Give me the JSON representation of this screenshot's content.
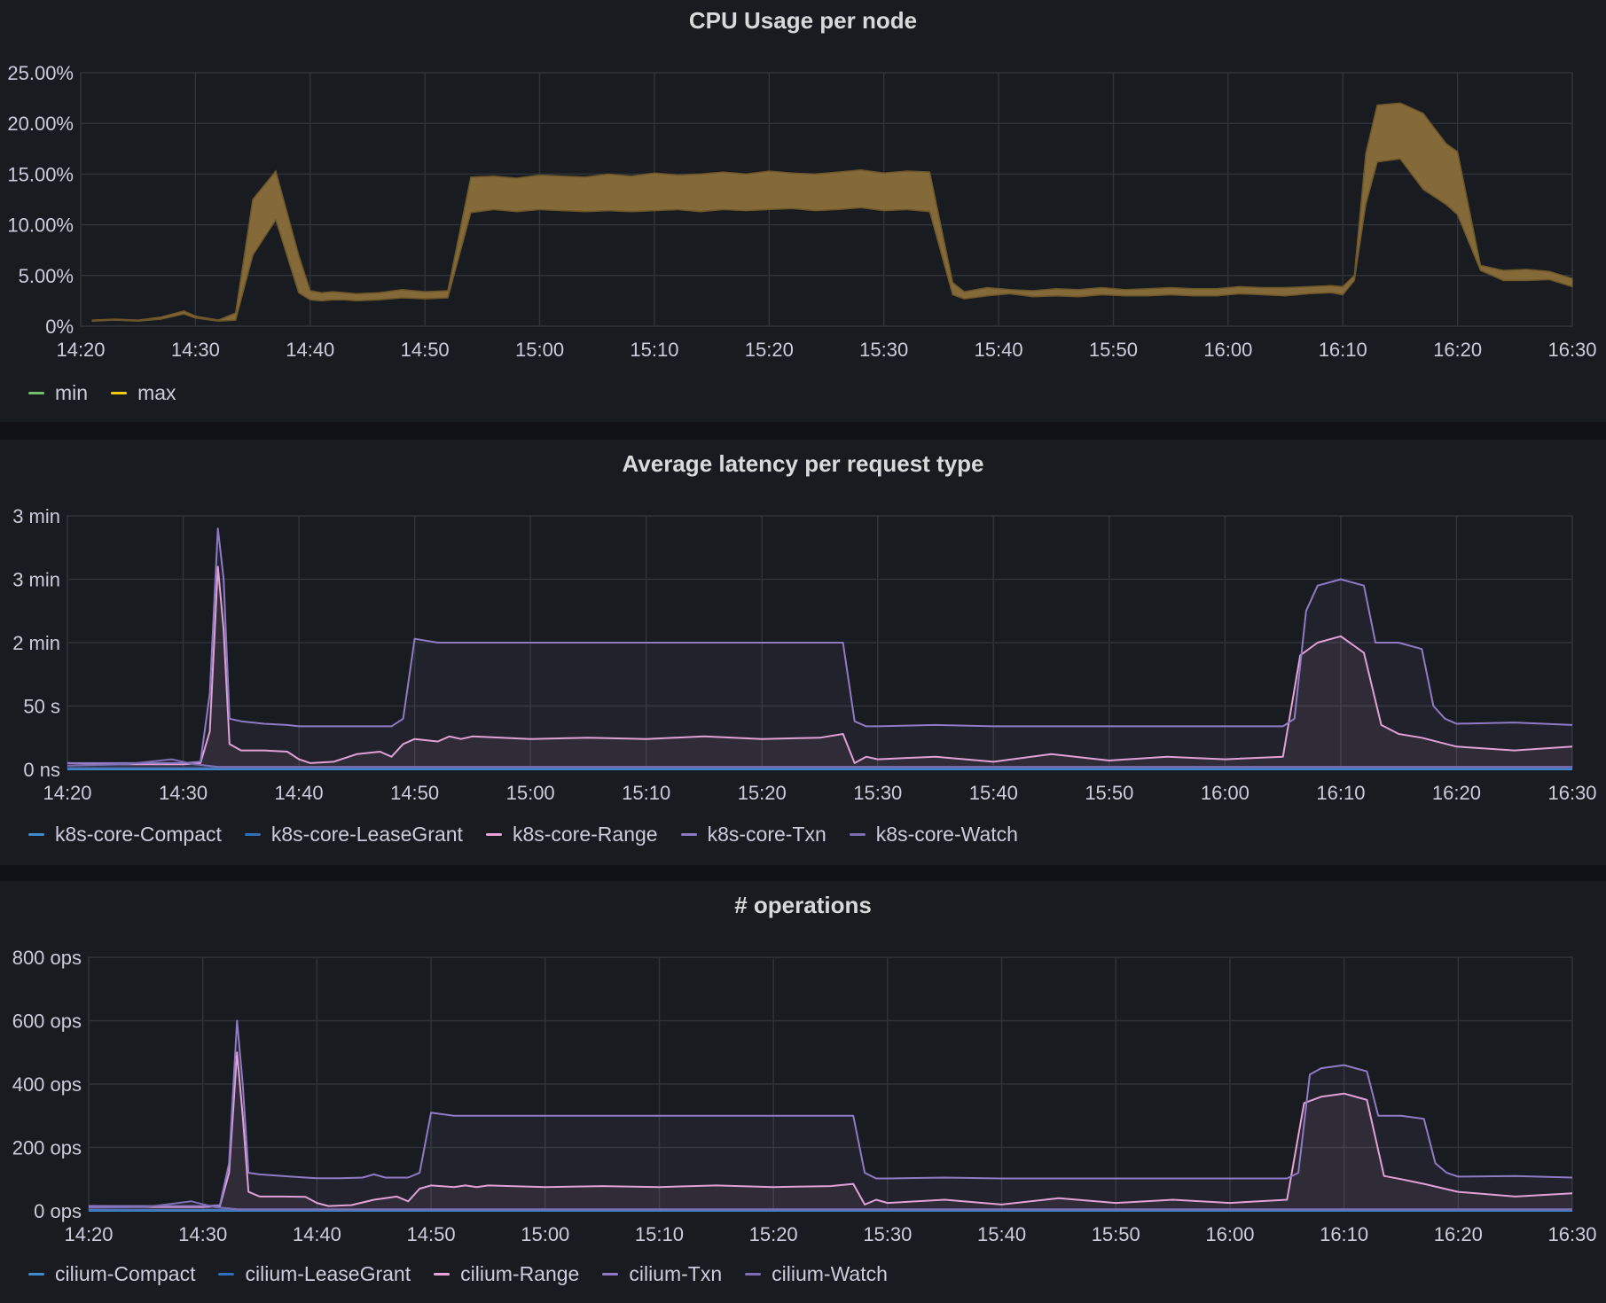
{
  "time_ticks": [
    "14:20",
    "14:30",
    "14:40",
    "14:50",
    "15:00",
    "15:10",
    "15:20",
    "15:30",
    "15:40",
    "15:50",
    "16:00",
    "16:10",
    "16:20",
    "16:30"
  ],
  "chart_data": [
    {
      "type": "area",
      "title": "CPU Usage per node",
      "y_ticks": [
        "0%",
        "5.00%",
        "10.00%",
        "15.00%",
        "20.00%",
        "25.00%"
      ],
      "ylim": [
        0,
        25
      ],
      "xlim_minutes": [
        0,
        130
      ],
      "grid": true,
      "legend_position": "bottom-left",
      "series": [
        {
          "name": "min",
          "color": "#73bf69",
          "x": [
            1,
            3,
            5,
            7,
            9,
            10,
            12,
            13.5,
            15,
            17,
            19,
            20,
            21,
            22,
            23,
            24,
            26,
            28,
            30,
            32,
            34,
            36,
            38,
            40,
            42,
            44,
            46,
            48,
            50,
            52,
            54,
            56,
            58,
            60,
            62,
            64,
            66,
            68,
            70,
            72,
            74,
            76,
            77,
            79,
            81,
            83,
            85,
            87,
            89,
            91,
            93,
            95,
            97,
            99,
            101,
            103,
            105,
            107,
            109,
            110,
            111,
            112,
            113,
            115,
            117,
            119,
            120,
            122,
            124,
            126,
            128,
            130
          ],
          "values": [
            0.5,
            0.6,
            0.5,
            0.7,
            1.2,
            0.8,
            0.5,
            0.6,
            7,
            10.5,
            3.3,
            2.6,
            2.5,
            2.6,
            2.6,
            2.5,
            2.6,
            2.8,
            2.7,
            2.8,
            11.2,
            11.5,
            11.3,
            11.5,
            11.4,
            11.3,
            11.4,
            11.3,
            11.4,
            11.5,
            11.3,
            11.5,
            11.4,
            11.5,
            11.6,
            11.4,
            11.5,
            11.7,
            11.4,
            11.5,
            11.3,
            3.1,
            2.7,
            3.0,
            3.2,
            2.9,
            3.0,
            2.9,
            3.1,
            3.0,
            3.0,
            3.1,
            3.0,
            3.0,
            3.2,
            3.1,
            3.0,
            3.2,
            3.3,
            3.1,
            4.5,
            12,
            16.2,
            16.5,
            13.5,
            12,
            11,
            5.5,
            4.5,
            4.5,
            4.6,
            3.9
          ]
        },
        {
          "name": "max",
          "color": "#f2cc0c",
          "x": [
            1,
            3,
            5,
            7,
            9,
            10,
            12,
            13.5,
            15,
            17,
            19,
            20,
            21,
            22,
            23,
            24,
            26,
            28,
            30,
            32,
            34,
            36,
            38,
            40,
            42,
            44,
            46,
            48,
            50,
            52,
            54,
            56,
            58,
            60,
            62,
            64,
            66,
            68,
            70,
            72,
            74,
            76,
            77,
            79,
            81,
            83,
            85,
            87,
            89,
            91,
            93,
            95,
            97,
            99,
            101,
            103,
            105,
            107,
            109,
            110,
            111,
            112,
            113,
            115,
            117,
            119,
            120,
            122,
            124,
            126,
            128,
            130
          ],
          "values": [
            0.6,
            0.7,
            0.6,
            0.9,
            1.5,
            1.0,
            0.6,
            1.3,
            12.5,
            15.3,
            7,
            3.5,
            3.3,
            3.4,
            3.3,
            3.2,
            3.3,
            3.6,
            3.4,
            3.5,
            14.7,
            14.8,
            14.6,
            14.9,
            14.8,
            14.7,
            15.0,
            14.8,
            15.1,
            14.9,
            15.0,
            15.2,
            15.0,
            15.3,
            15.1,
            15.0,
            15.2,
            15.4,
            15.1,
            15.3,
            15.2,
            4.3,
            3.4,
            3.8,
            3.6,
            3.5,
            3.7,
            3.6,
            3.8,
            3.6,
            3.7,
            3.8,
            3.7,
            3.7,
            3.9,
            3.8,
            3.8,
            3.9,
            4.0,
            3.9,
            5.0,
            17,
            21.8,
            22.0,
            21,
            18,
            17.2,
            6,
            5.5,
            5.6,
            5.4,
            4.7
          ]
        }
      ]
    },
    {
      "type": "line",
      "title": "Average latency per request type",
      "y_ticks": [
        "0 ns",
        "50 s",
        "2 min",
        "3 min",
        "3 min"
      ],
      "ylim": [
        0,
        200
      ],
      "xlim_minutes": [
        0,
        130
      ],
      "grid": true,
      "legend_position": "bottom-left",
      "series": [
        {
          "name": "k8s-core-Compact",
          "color": "#3d8ccf",
          "x": [
            0,
            130
          ],
          "values": [
            0,
            0
          ]
        },
        {
          "name": "k8s-core-LeaseGrant",
          "color": "#2f6fb8",
          "x": [
            0,
            130
          ],
          "values": [
            1,
            1
          ]
        },
        {
          "name": "k8s-core-Range",
          "color": "#e8a4d8",
          "x": [
            0,
            5,
            10,
            11.5,
            12.3,
            13,
            13.5,
            14,
            15,
            17,
            19,
            20,
            21,
            23,
            25,
            27,
            28,
            29,
            30,
            32,
            33,
            34,
            35,
            40,
            45,
            50,
            55,
            60,
            65,
            67,
            68,
            69,
            70,
            75,
            80,
            85,
            90,
            95,
            100,
            105,
            106.5,
            108,
            110,
            112,
            113.5,
            115,
            117,
            120,
            125,
            130
          ],
          "values": [
            5,
            4,
            4,
            5,
            30,
            160,
            110,
            20,
            15,
            15,
            14,
            8,
            5,
            6,
            12,
            14,
            10,
            20,
            24,
            22,
            26,
            24,
            26,
            24,
            25,
            24,
            26,
            24,
            25,
            28,
            5,
            10,
            8,
            10,
            6,
            12,
            7,
            10,
            8,
            10,
            90,
            100,
            105,
            92,
            35,
            28,
            25,
            18,
            15,
            18
          ]
        },
        {
          "name": "k8s-core-Txn",
          "color": "#8f7bc5",
          "x": [
            0,
            5,
            10,
            11.5,
            12.3,
            13,
            13.5,
            14,
            15,
            17,
            19,
            20,
            22,
            24,
            25,
            26,
            27,
            28,
            29,
            30,
            32,
            34,
            36,
            40,
            45,
            50,
            55,
            60,
            65,
            67,
            68,
            69,
            70,
            75,
            80,
            85,
            90,
            95,
            100,
            104,
            105,
            106,
            107,
            108,
            110,
            112,
            113,
            114,
            115,
            117,
            118,
            119,
            120,
            125,
            130
          ],
          "values": [
            5,
            5,
            5,
            6,
            60,
            190,
            150,
            40,
            38,
            36,
            35,
            34,
            34,
            34,
            34,
            34,
            34,
            34,
            40,
            103,
            100,
            100,
            100,
            100,
            100,
            100,
            100,
            100,
            100,
            100,
            38,
            34,
            34,
            35,
            34,
            34,
            34,
            34,
            34,
            34,
            34,
            40,
            125,
            145,
            150,
            145,
            100,
            100,
            100,
            95,
            50,
            40,
            36,
            37,
            35
          ]
        },
        {
          "name": "k8s-core-Watch",
          "color": "#7e6fb4",
          "x": [
            0,
            5,
            9,
            11,
            13,
            130
          ],
          "values": [
            3,
            4,
            8,
            4,
            2,
            2
          ]
        }
      ]
    },
    {
      "type": "line",
      "title": "# operations",
      "y_ticks": [
        "0 ops",
        "200 ops",
        "400 ops",
        "600 ops",
        "800 ops"
      ],
      "ylim": [
        0,
        800
      ],
      "xlim_minutes": [
        0,
        130
      ],
      "grid": true,
      "legend_position": "bottom-left",
      "series": [
        {
          "name": "cilium-Compact",
          "color": "#3d8ccf",
          "x": [
            0,
            130
          ],
          "values": [
            0,
            0
          ]
        },
        {
          "name": "cilium-LeaseGrant",
          "color": "#2f6fb8",
          "x": [
            0,
            130
          ],
          "values": [
            3,
            3
          ]
        },
        {
          "name": "cilium-Range",
          "color": "#e8a4d8",
          "x": [
            0,
            5,
            10,
            11.5,
            12.3,
            13,
            13.5,
            14,
            15,
            17,
            19,
            20,
            21,
            23,
            25,
            27,
            28,
            29,
            30,
            32,
            33,
            34,
            35,
            40,
            45,
            50,
            55,
            60,
            65,
            67,
            68,
            69,
            70,
            75,
            80,
            85,
            90,
            95,
            100,
            105,
            106.5,
            108,
            110,
            112,
            113.5,
            115,
            117,
            120,
            125,
            130
          ],
          "values": [
            15,
            12,
            12,
            15,
            120,
            500,
            300,
            60,
            45,
            45,
            44,
            25,
            15,
            18,
            35,
            45,
            30,
            70,
            80,
            75,
            80,
            75,
            80,
            75,
            78,
            75,
            80,
            75,
            78,
            85,
            20,
            35,
            25,
            35,
            20,
            40,
            25,
            35,
            25,
            35,
            340,
            360,
            370,
            350,
            110,
            100,
            85,
            60,
            45,
            55
          ]
        },
        {
          "name": "cilium-Txn",
          "color": "#8f7bc5",
          "x": [
            0,
            5,
            10,
            11.5,
            12.3,
            13,
            13.5,
            14,
            15,
            17,
            19,
            20,
            22,
            24,
            25,
            26,
            27,
            28,
            29,
            30,
            32,
            34,
            36,
            40,
            45,
            50,
            55,
            60,
            65,
            67,
            68,
            69,
            70,
            75,
            80,
            85,
            90,
            95,
            100,
            104,
            105,
            106,
            107,
            108,
            110,
            112,
            113,
            114,
            115,
            117,
            118,
            119,
            120,
            125,
            130
          ],
          "values": [
            15,
            15,
            15,
            18,
            150,
            600,
            400,
            120,
            115,
            110,
            105,
            103,
            103,
            105,
            115,
            105,
            105,
            105,
            120,
            310,
            300,
            300,
            300,
            300,
            300,
            300,
            300,
            300,
            300,
            300,
            120,
            102,
            102,
            105,
            102,
            102,
            102,
            102,
            102,
            102,
            102,
            120,
            430,
            450,
            460,
            440,
            300,
            300,
            300,
            290,
            150,
            120,
            108,
            110,
            105
          ]
        },
        {
          "name": "cilium-Watch",
          "color": "#7e6fb4",
          "x": [
            0,
            5,
            9,
            11,
            13,
            130
          ],
          "values": [
            10,
            12,
            30,
            12,
            5,
            5
          ]
        }
      ]
    }
  ]
}
